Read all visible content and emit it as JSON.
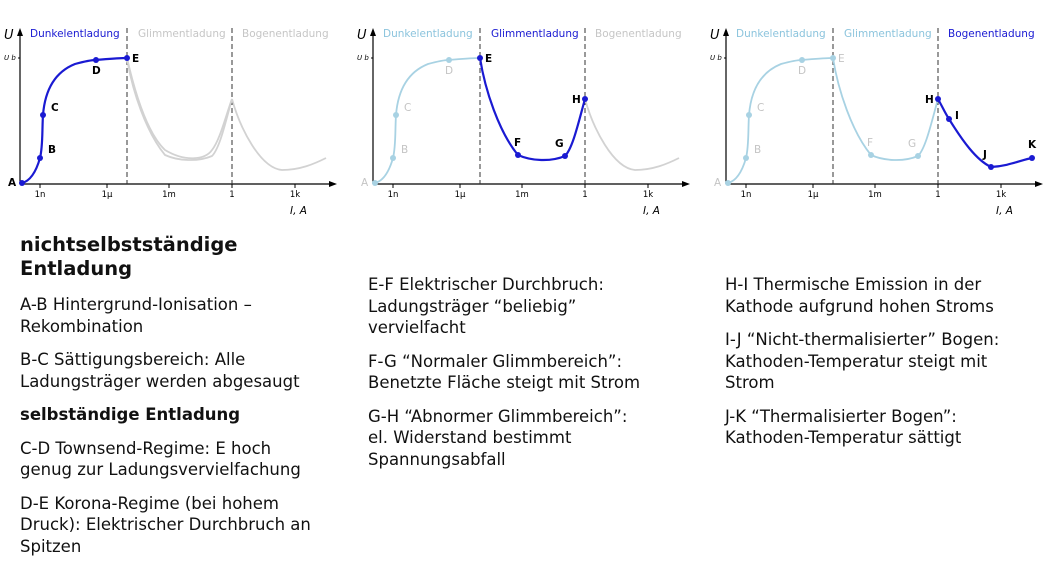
{
  "colors": {
    "active": "#1a1ad2",
    "inactive": "#a8d2e3",
    "future": "#d2d2d2",
    "axis": "#000000",
    "header_active": "#1a1ad2",
    "header_inactive": "#8cc4dd",
    "header_future": "#c6c6c6"
  },
  "axis": {
    "y_label": "U",
    "y_tick": "U b",
    "x_label": "I, A",
    "x_ticks": [
      "1n",
      "1µ",
      "1m",
      "1",
      "1k"
    ]
  },
  "regions": [
    "Dunkelentladung",
    "Glimmentladung",
    "Bogenentladung"
  ],
  "panels": [
    {
      "active_region": 0,
      "active_points": [
        "A",
        "B",
        "C",
        "D",
        "E"
      ]
    },
    {
      "active_region": 1,
      "active_points": [
        "E",
        "F",
        "G",
        "H"
      ]
    },
    {
      "active_region": 2,
      "active_points": [
        "H",
        "I",
        "J",
        "K"
      ]
    }
  ],
  "points": [
    "A",
    "B",
    "C",
    "D",
    "E",
    "F",
    "G",
    "H",
    "I",
    "J",
    "K"
  ],
  "text": {
    "col1": {
      "h1": "nichtselbstständige Entladung",
      "ab": [
        "A-B Hintergrund-Ionisation –",
        "Rekombination"
      ],
      "bc": [
        "B-C Sättigungsbereich: Alle",
        "Ladungsträger werden abgesaugt"
      ],
      "h2": "selbständige Entladung",
      "cd": [
        "C-D Townsend-Regime: E hoch",
        "genug zur Ladungsvervielfachung"
      ],
      "de": [
        "D-E Korona-Regime (bei hohem",
        "Druck): Elektrischer Durchbruch an",
        "Spitzen"
      ]
    },
    "col2": {
      "ef": [
        "E-F Elektrischer Durchbruch:",
        "Ladungsträger “beliebig”",
        "vervielfacht"
      ],
      "fg": [
        "F-G “Normaler Glimmbereich”:",
        "Benetzte Fläche steigt mit Strom"
      ],
      "gh": [
        "G-H “Abnormer Glimmbereich”:",
        "el. Widerstand bestimmt",
        "Spannungsabfall"
      ]
    },
    "col3": {
      "hi": [
        "H-I Thermische Emission in der",
        "Kathode aufgrund hohen Stroms"
      ],
      "ij": [
        "I-J “Nicht-thermalisierter” Bogen:",
        "Kathoden-Temperatur steigt mit",
        "Strom"
      ],
      "jk": [
        "J-K “Thermalisierter Bogen”:",
        "Kathoden-Temperatur sättigt"
      ]
    }
  }
}
